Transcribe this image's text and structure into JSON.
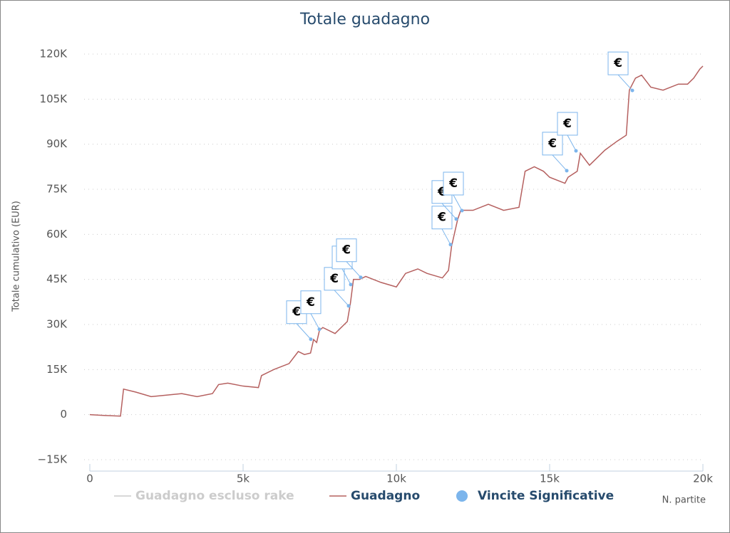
{
  "chart_data": {
    "type": "line",
    "title": "Totale guadagno",
    "y_axis_label": "Totale cumulativo (EUR)",
    "x_axis_label": "N. partite",
    "marker_label": "€",
    "xlim": [
      0,
      20000
    ],
    "ylim": [
      -15000,
      120000
    ],
    "xticks": [
      0,
      {
        "value": 5000,
        "label": "5k"
      },
      {
        "value": 10000,
        "label": "10k"
      },
      {
        "value": 15000,
        "label": "15k"
      },
      {
        "value": 20000,
        "label": "20k"
      }
    ],
    "yticks": [
      {
        "value": -15000,
        "label": "−15K"
      },
      0,
      {
        "value": 15000,
        "label": "15K"
      },
      {
        "value": 30000,
        "label": "30K"
      },
      {
        "value": 45000,
        "label": "45K"
      },
      {
        "value": 60000,
        "label": "60K"
      },
      {
        "value": 75000,
        "label": "75K"
      },
      {
        "value": 90000,
        "label": "90K"
      },
      {
        "value": 105000,
        "label": "105K"
      },
      {
        "value": 120000,
        "label": "120K"
      }
    ],
    "grid": true,
    "series": [
      {
        "name": "Guadagno escluso rake",
        "color": "#cccccc",
        "hidden": true
      },
      {
        "name": "Guadagno",
        "color": "#b5605f",
        "x": [
          0,
          500,
          1000,
          1100,
          1500,
          2000,
          2500,
          3000,
          3500,
          4000,
          4200,
          4500,
          5000,
          5500,
          5600,
          6000,
          6500,
          6800,
          7000,
          7200,
          7300,
          7400,
          7490,
          7600,
          8000,
          8400,
          8500,
          8600,
          8800,
          9000,
          9500,
          10000,
          10300,
          10700,
          11000,
          11500,
          11700,
          11800,
          12000,
          12100,
          12500,
          13000,
          13500,
          14000,
          14200,
          14500,
          14800,
          15000,
          15500,
          15600,
          15900,
          16000,
          16300,
          16800,
          17200,
          17500,
          17600,
          17800,
          18000,
          18300,
          18700,
          19200,
          19500,
          19700,
          19900,
          20000
        ],
        "values": [
          0,
          -300,
          -500,
          8500,
          7500,
          6000,
          6500,
          7000,
          6000,
          7000,
          10000,
          10500,
          9500,
          9000,
          13000,
          15000,
          17000,
          21000,
          20000,
          20500,
          25000,
          24000,
          28000,
          29000,
          27000,
          31000,
          37000,
          45000,
          45000,
          46000,
          44000,
          42500,
          47000,
          48500,
          47000,
          45500,
          48000,
          56000,
          65000,
          68000,
          68000,
          70000,
          68000,
          69000,
          81000,
          82500,
          81000,
          79000,
          77000,
          79000,
          81000,
          87000,
          83000,
          88000,
          91000,
          93000,
          108000,
          112000,
          113000,
          109000,
          108000,
          110000,
          110000,
          112000,
          115000,
          116000
        ]
      },
      {
        "name": "Vincite Significative",
        "color": "#7cb5ec",
        "x": [
          7209,
          7488,
          8442,
          8512,
          8837,
          11767,
          11953,
          12140,
          15558,
          15860,
          17698
        ],
        "values": [
          25090,
          28400,
          36200,
          43300,
          45700,
          56600,
          65100,
          67900,
          81200,
          87800,
          107900
        ]
      }
    ]
  }
}
